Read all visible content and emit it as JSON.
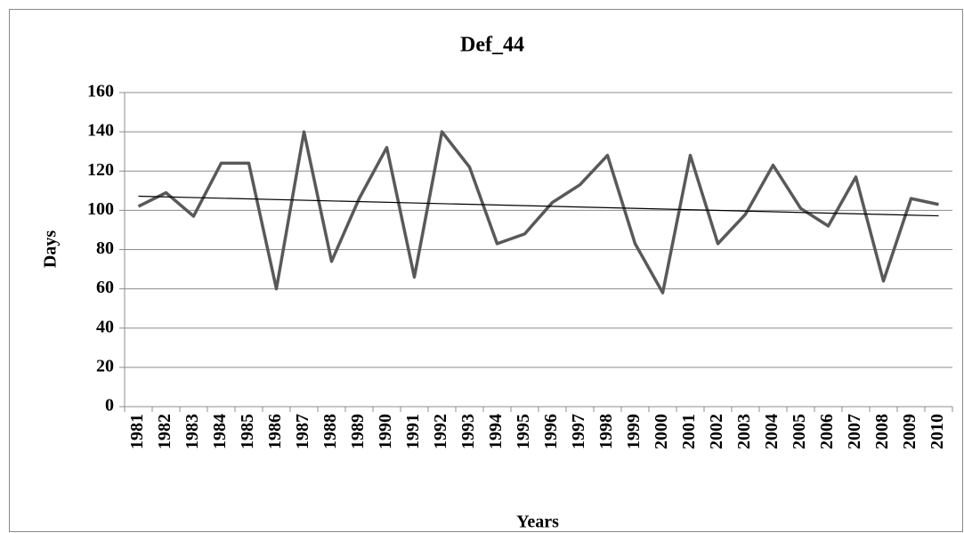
{
  "chart_data": {
    "type": "line",
    "title": "Def_44",
    "x_label": "Years",
    "y_label": "Days",
    "categories": [
      "1981",
      "1982",
      "1983",
      "1984",
      "1985",
      "1986",
      "1987",
      "1988",
      "1989",
      "1990",
      "1991",
      "1992",
      "1993",
      "1994",
      "1995",
      "1996",
      "1997",
      "1998",
      "1999",
      "2000",
      "2001",
      "2002",
      "2003",
      "2004",
      "2005",
      "2006",
      "2007",
      "2008",
      "2009",
      "2010"
    ],
    "series": [
      {
        "color": "#595959",
        "values": [
          102,
          109,
          97,
          124,
          124,
          60,
          140,
          74,
          106,
          132,
          66,
          140,
          122,
          83,
          88,
          104,
          113,
          128,
          83,
          58,
          128,
          83,
          98,
          123,
          101,
          92,
          117,
          64,
          106,
          103
        ]
      }
    ],
    "trendline": {
      "start": 107.2,
      "end": 97.2,
      "color": "#000000"
    },
    "ylim": [
      0,
      160
    ],
    "yticks": [
      0,
      20,
      40,
      60,
      80,
      100,
      120,
      140,
      160
    ],
    "grid": true
  }
}
